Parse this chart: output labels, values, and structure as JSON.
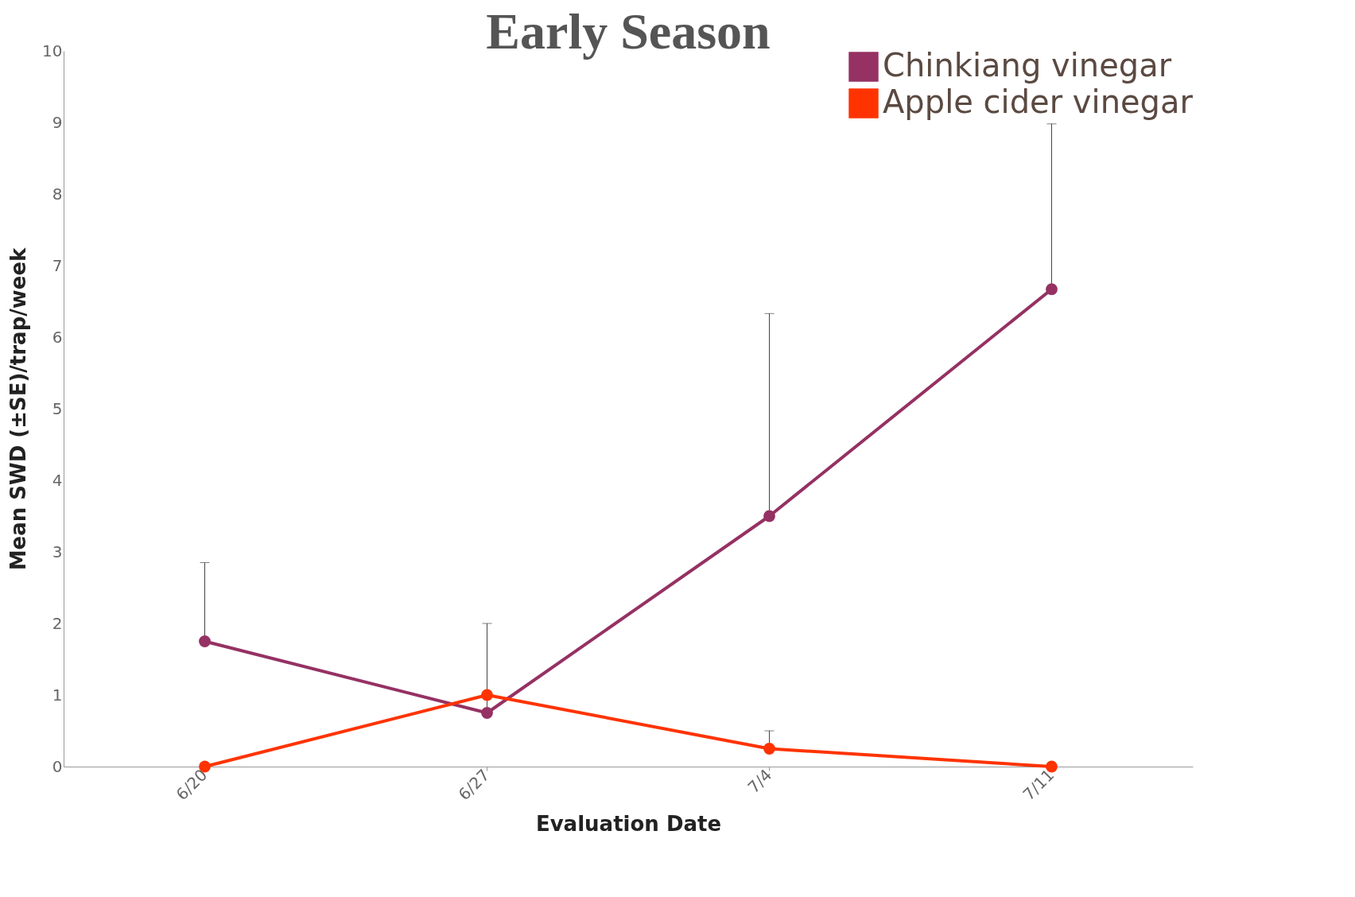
{
  "chart_data": {
    "type": "line",
    "title": "Early Season",
    "xlabel": "Evaluation Date",
    "ylabel": "Mean SWD (±SE)/trap/week",
    "categories": [
      "6/20",
      "6/27",
      "7/4",
      "7/11"
    ],
    "series": [
      {
        "name": "Chinkiang vinegar",
        "color": "#953163",
        "values": [
          1.75,
          0.75,
          3.5,
          6.67
        ],
        "errors": [
          [
            1.75,
            2.85
          ],
          [
            0.75,
            2.0
          ],
          [
            3.5,
            6.33
          ],
          [
            6.67,
            8.98
          ]
        ]
      },
      {
        "name": "Apple cider vinegar",
        "color": "#ff3300",
        "values": [
          0,
          1,
          0.25,
          0
        ],
        "errors": [
          null,
          null,
          [
            0.25,
            0.5
          ],
          null
        ]
      }
    ],
    "ylim": [
      0,
      10
    ],
    "yticks": [
      0,
      1,
      2,
      3,
      4,
      5,
      6,
      7,
      8,
      9,
      10
    ],
    "grid": false,
    "legend": "top right",
    "marker": "circle",
    "line_style": "solid"
  }
}
